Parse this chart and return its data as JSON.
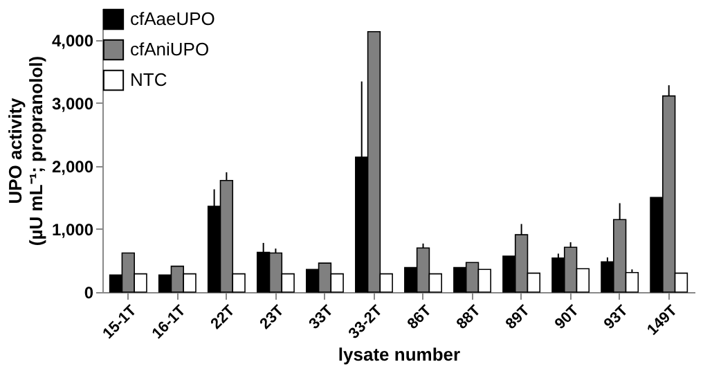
{
  "chart_data": {
    "type": "bar",
    "xlabel": "lysate number",
    "ylabel": "UPO activity\n(µU mL⁻¹; propranolol)",
    "categories": [
      "15-1T",
      "16-1T",
      "22T",
      "23T",
      "33T",
      "33-2T",
      "86T",
      "88T",
      "89T",
      "90T",
      "93T",
      "149T"
    ],
    "series": [
      {
        "name": "cfAaeUPO",
        "color": "#000000",
        "values": [
          270,
          270,
          1360,
          630,
          360,
          2140,
          390,
          390,
          570,
          540,
          480,
          1500
        ],
        "errors": [
          null,
          null,
          [
            1360,
            1630
          ],
          [
            630,
            780
          ],
          null,
          [
            2140,
            3340
          ],
          null,
          null,
          null,
          [
            540,
            610
          ],
          [
            480,
            550
          ],
          null
        ]
      },
      {
        "name": "cfAniUPO",
        "color": "#808080",
        "values": [
          620,
          410,
          1770,
          620,
          460,
          4130,
          700,
          470,
          910,
          710,
          1150,
          3110
        ],
        "errors": [
          null,
          null,
          [
            1770,
            1900
          ],
          [
            620,
            690
          ],
          null,
          null,
          [
            700,
            770
          ],
          null,
          [
            910,
            1080
          ],
          [
            710,
            790
          ],
          [
            1150,
            1410
          ],
          [
            3110,
            3280
          ]
        ]
      },
      {
        "name": "NTC",
        "color": "#ffffff",
        "values": [
          290,
          290,
          290,
          290,
          290,
          290,
          290,
          360,
          300,
          370,
          310,
          300
        ],
        "errors": [
          null,
          null,
          null,
          null,
          null,
          null,
          null,
          null,
          null,
          null,
          [
            310,
            360
          ],
          null
        ]
      }
    ],
    "ylim": [
      0,
      4500
    ],
    "yticks": [
      0,
      {
        "value": 1000,
        "label": "1,000"
      },
      {
        "value": 2000,
        "label": "2,000"
      },
      {
        "value": 3000,
        "label": "3,000"
      },
      {
        "value": 4000,
        "label": "4,000"
      }
    ],
    "grid": false,
    "legend": "top left"
  }
}
